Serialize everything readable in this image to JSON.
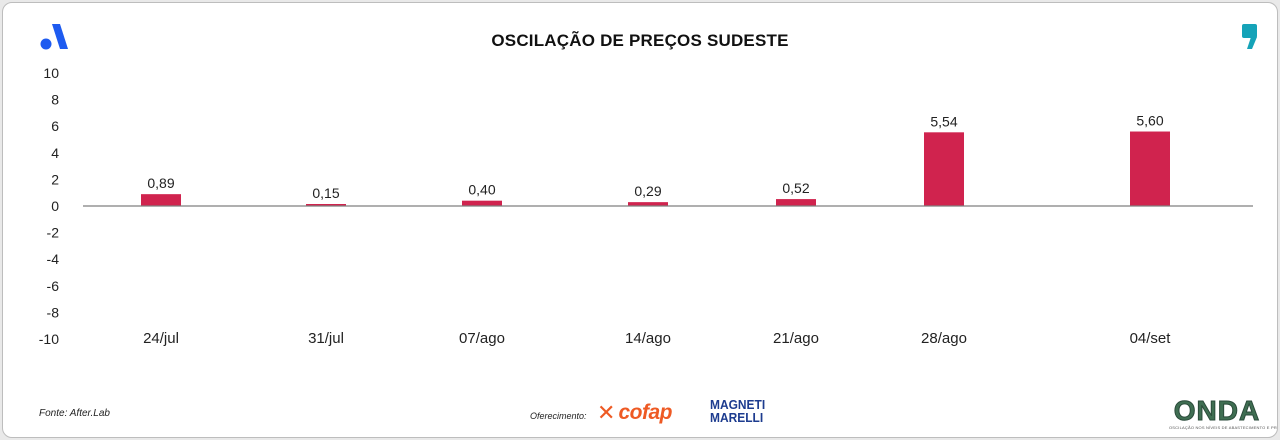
{
  "header": {
    "title": "OSCILAÇÃO DE PREÇOS SUDESTE"
  },
  "footer": {
    "source": "Fonte: After.Lab",
    "sponsor_label": "Oferecimento:",
    "sponsor_1": "cofap",
    "sponsor_2_line1": "MAGNETI",
    "sponsor_2_line2": "MARELLI",
    "brand": "ONDA",
    "brand_tagline": "OSCILAÇÃO NOS NÍVEIS DE ABASTECIMENTO E PREÇOS"
  },
  "icons": {
    "top_left": "brand-a-logo-icon",
    "top_right": "comma-logo-icon"
  },
  "colors": {
    "bar": "#d0234e",
    "brand_blue": "#1e5bf0",
    "comma_teal": "#15a3b8"
  },
  "chart_data": {
    "type": "bar",
    "title": "OSCILAÇÃO DE PREÇOS SUDESTE",
    "xlabel": "",
    "ylabel": "",
    "categories": [
      "24/jul",
      "31/jul",
      "07/ago",
      "14/ago",
      "21/ago",
      "28/ago",
      "04/set"
    ],
    "values": [
      0.89,
      0.15,
      0.4,
      0.29,
      0.52,
      5.54,
      5.6
    ],
    "value_labels": [
      "0,89",
      "0,15",
      "0,40",
      "0,29",
      "0,52",
      "5,54",
      "5,60"
    ],
    "ylim": [
      -10,
      10
    ],
    "yticks": [
      "10",
      "8",
      "6",
      "4",
      "2",
      "0",
      "-2",
      "-4",
      "-6",
      "-8",
      "-10"
    ],
    "ytick_values": [
      10,
      8,
      6,
      4,
      2,
      0,
      -2,
      -4,
      -6,
      -8,
      -10
    ],
    "grid": false,
    "legend": "none"
  }
}
